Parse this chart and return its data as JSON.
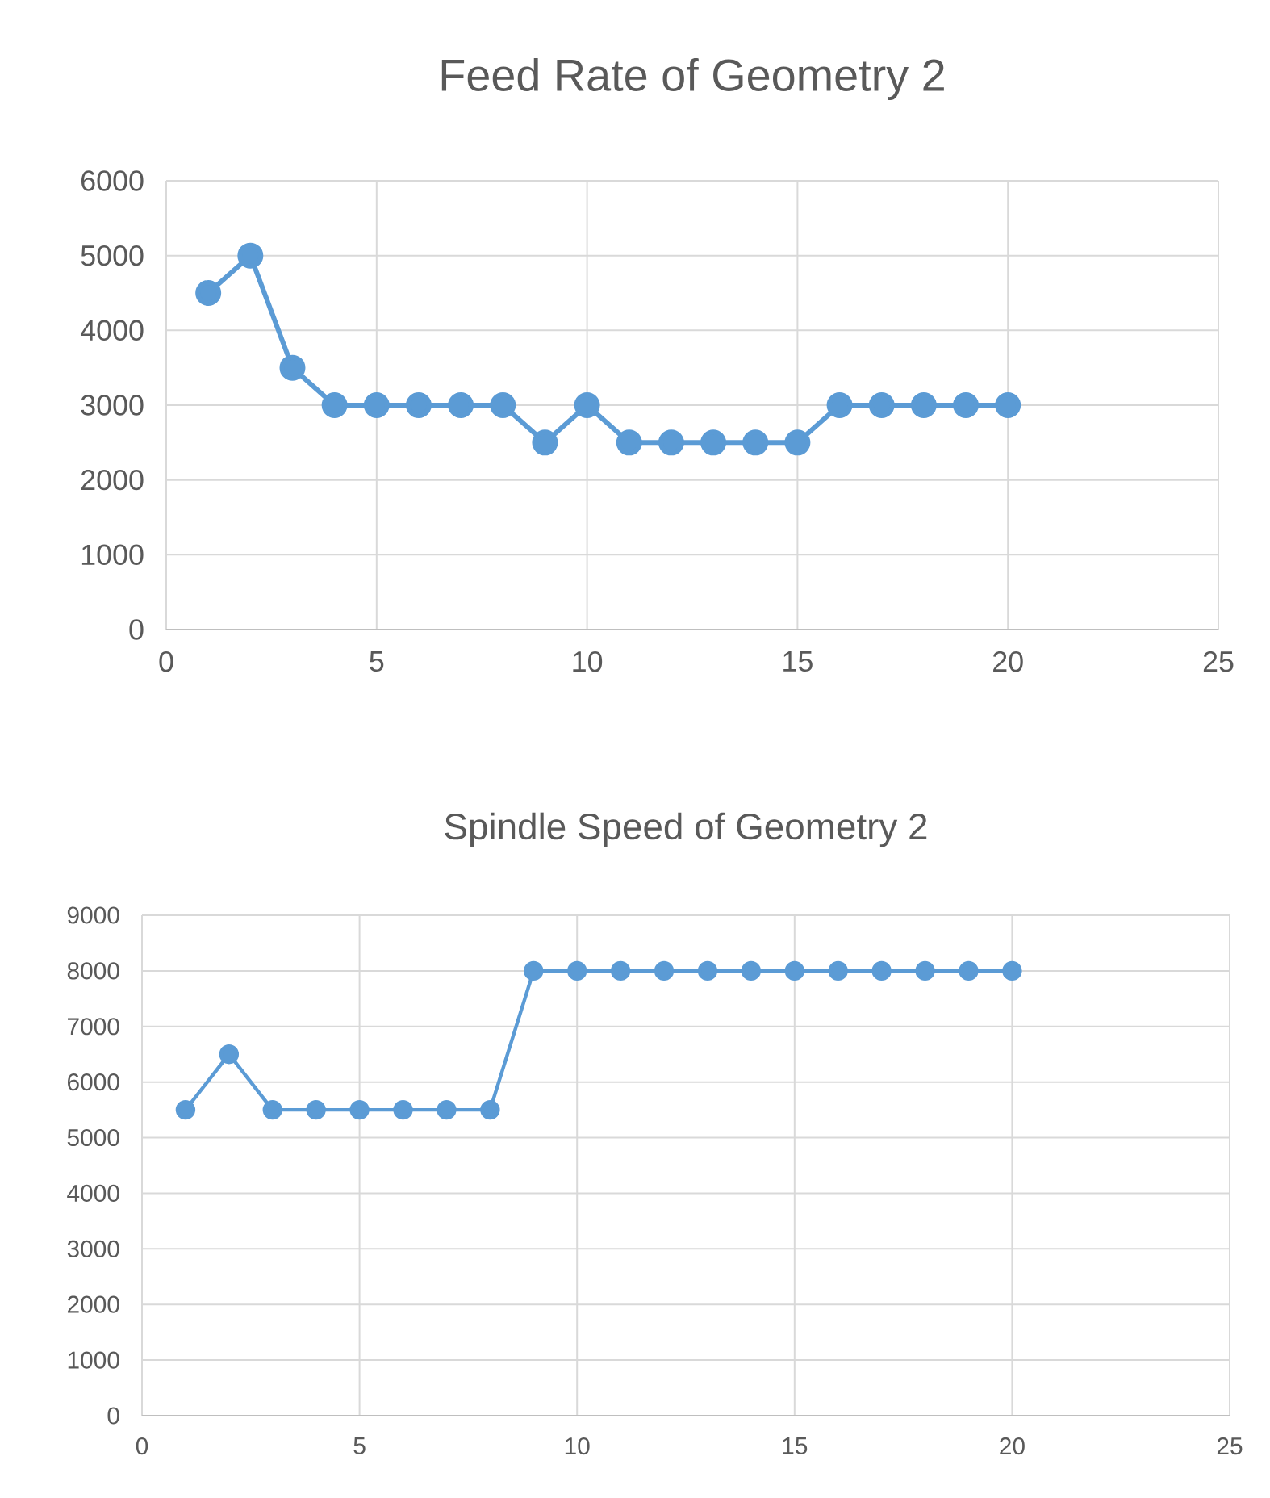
{
  "chart_data": [
    {
      "type": "line",
      "title": "Feed Rate of Geometry 2",
      "x": [
        1,
        2,
        3,
        4,
        5,
        6,
        7,
        8,
        9,
        10,
        11,
        12,
        13,
        14,
        15,
        16,
        17,
        18,
        19,
        20
      ],
      "series": [
        {
          "color": "#5b9bd5",
          "values": [
            4500,
            5000,
            3500,
            3000,
            3000,
            3000,
            3000,
            3000,
            2500,
            3000,
            2500,
            2500,
            2500,
            2500,
            2500,
            3000,
            3000,
            3000,
            3000,
            3000
          ]
        }
      ],
      "xlim": [
        0,
        25
      ],
      "xticks": [
        0,
        5,
        10,
        15,
        20,
        25
      ],
      "ylim": [
        0,
        6000
      ],
      "yticks": [
        0,
        1000,
        2000,
        3000,
        4000,
        5000,
        6000
      ],
      "grid": true,
      "marker": "circle",
      "line_style": "solid"
    },
    {
      "type": "line",
      "title": "Spindle Speed of Geometry 2",
      "x": [
        1,
        2,
        3,
        4,
        5,
        6,
        7,
        8,
        9,
        10,
        11,
        12,
        13,
        14,
        15,
        16,
        17,
        18,
        19,
        20
      ],
      "series": [
        {
          "color": "#5b9bd5",
          "values": [
            5500,
            6500,
            5500,
            5500,
            5500,
            5500,
            5500,
            5500,
            8000,
            8000,
            8000,
            8000,
            8000,
            8000,
            8000,
            8000,
            8000,
            8000,
            8000,
            8000
          ]
        }
      ],
      "xlim": [
        0,
        25
      ],
      "xticks": [
        0,
        5,
        10,
        15,
        20,
        25
      ],
      "ylim": [
        0,
        9000
      ],
      "yticks": [
        0,
        1000,
        2000,
        3000,
        4000,
        5000,
        6000,
        7000,
        8000,
        9000
      ],
      "grid": true,
      "marker": "circle",
      "line_style": "solid"
    }
  ]
}
